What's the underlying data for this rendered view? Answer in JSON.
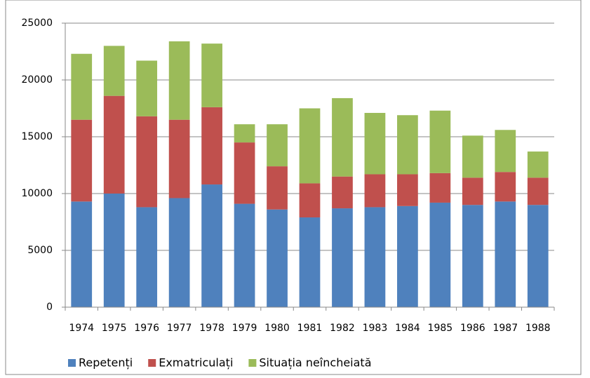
{
  "chart_data": {
    "type": "stacked_bar",
    "categories": [
      "1974",
      "1975",
      "1976",
      "1977",
      "1978",
      "1979",
      "1980",
      "1981",
      "1982",
      "1983",
      "1984",
      "1985",
      "1986",
      "1987",
      "1988"
    ],
    "series": [
      {
        "name": "Repetenți",
        "color": "#4f81bd",
        "values": [
          9300,
          10000,
          8800,
          9600,
          10800,
          9100,
          8600,
          7900,
          8700,
          8800,
          8900,
          9200,
          9000,
          9300,
          9000
        ]
      },
      {
        "name": "Exmatriculați",
        "color": "#c0504d",
        "values": [
          7200,
          8600,
          8000,
          6900,
          6800,
          5400,
          3800,
          3000,
          2800,
          2900,
          2800,
          2600,
          2400,
          2600,
          2400
        ]
      },
      {
        "name": "Situația neîncheiată",
        "color": "#9bbb59",
        "values": [
          5800,
          4400,
          4900,
          6900,
          5600,
          1600,
          3700,
          6600,
          6900,
          5400,
          5200,
          5500,
          3700,
          3700,
          2300
        ]
      }
    ],
    "ylim": [
      0,
      25000
    ],
    "yticks": [
      0,
      5000,
      10000,
      15000,
      20000,
      25000
    ],
    "grid": true,
    "legend": "bottom"
  }
}
